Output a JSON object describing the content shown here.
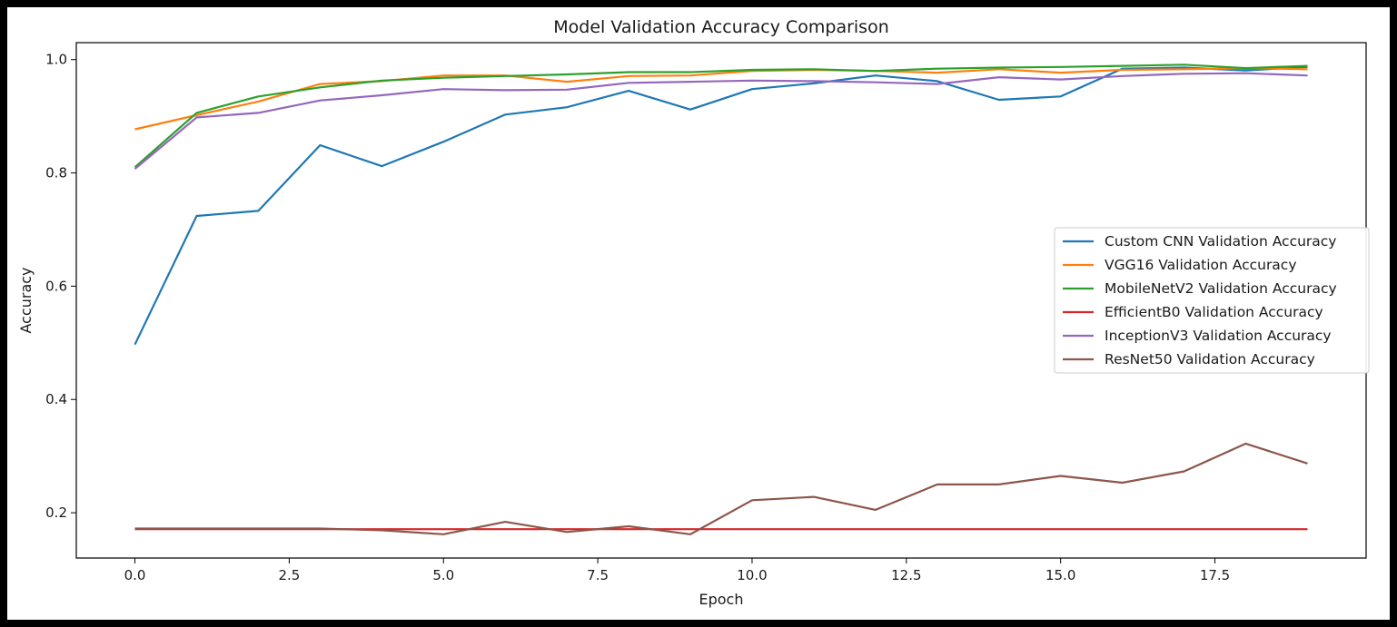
{
  "chart_data": {
    "type": "line",
    "title": "Model Validation Accuracy Comparison",
    "xlabel": "Epoch",
    "ylabel": "Accuracy",
    "xlim": [
      -0.95,
      19.95
    ],
    "ylim": [
      0.12,
      1.03
    ],
    "xticks": [
      0.0,
      2.5,
      5.0,
      7.5,
      10.0,
      12.5,
      15.0,
      17.5
    ],
    "xtick_labels": [
      "0.0",
      "2.5",
      "5.0",
      "7.5",
      "10.0",
      "12.5",
      "15.0",
      "17.5"
    ],
    "yticks": [
      0.2,
      0.4,
      0.6,
      0.8,
      1.0
    ],
    "ytick_labels": [
      "0.2",
      "0.4",
      "0.6",
      "0.8",
      "1.0"
    ],
    "grid": false,
    "legend_position": "center-right",
    "x": [
      0,
      1,
      2,
      3,
      4,
      5,
      6,
      7,
      8,
      9,
      10,
      11,
      12,
      13,
      14,
      15,
      16,
      17,
      18,
      19
    ],
    "series": [
      {
        "name": "Custom CNN Validation Accuracy",
        "color": "#1f77b4",
        "values": [
          0.497,
          0.724,
          0.733,
          0.849,
          0.812,
          0.855,
          0.903,
          0.916,
          0.945,
          0.912,
          0.948,
          0.958,
          0.972,
          0.962,
          0.929,
          0.935,
          0.984,
          0.986,
          0.981,
          0.987
        ]
      },
      {
        "name": "VGG16 Validation Accuracy",
        "color": "#ff7f0e",
        "values": [
          0.877,
          0.902,
          0.926,
          0.957,
          0.962,
          0.972,
          0.972,
          0.961,
          0.971,
          0.972,
          0.98,
          0.982,
          0.98,
          0.977,
          0.983,
          0.977,
          0.982,
          0.983,
          0.985,
          0.983
        ]
      },
      {
        "name": "MobileNetV2 Validation Accuracy",
        "color": "#2ca02c",
        "values": [
          0.81,
          0.906,
          0.935,
          0.951,
          0.963,
          0.968,
          0.971,
          0.974,
          0.978,
          0.978,
          0.982,
          0.983,
          0.98,
          0.984,
          0.986,
          0.987,
          0.989,
          0.991,
          0.985,
          0.989
        ]
      },
      {
        "name": "EfficientB0 Validation Accuracy",
        "color": "#d62728",
        "values": [
          0.171,
          0.171,
          0.171,
          0.171,
          0.171,
          0.171,
          0.171,
          0.171,
          0.171,
          0.171,
          0.171,
          0.171,
          0.171,
          0.171,
          0.171,
          0.171,
          0.171,
          0.171,
          0.171,
          0.171
        ]
      },
      {
        "name": "InceptionV3 Validation Accuracy",
        "color": "#9467bd",
        "values": [
          0.807,
          0.898,
          0.906,
          0.928,
          0.937,
          0.948,
          0.946,
          0.947,
          0.959,
          0.961,
          0.963,
          0.962,
          0.96,
          0.957,
          0.969,
          0.965,
          0.971,
          0.975,
          0.976,
          0.972
        ]
      },
      {
        "name": "ResNet50 Validation Accuracy",
        "color": "#8c564b",
        "values": [
          0.172,
          0.172,
          0.172,
          0.172,
          0.169,
          0.162,
          0.184,
          0.166,
          0.176,
          0.162,
          0.222,
          0.228,
          0.205,
          0.25,
          0.25,
          0.265,
          0.253,
          0.273,
          0.322,
          0.287
        ]
      }
    ]
  }
}
